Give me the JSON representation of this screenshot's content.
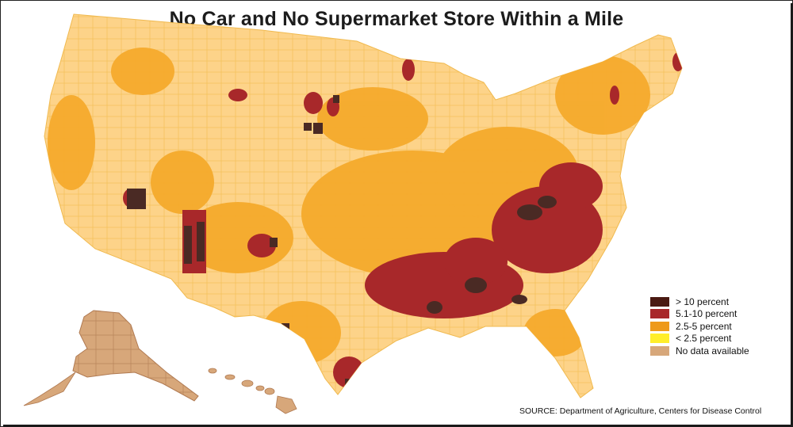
{
  "title": "No Car and No Supermarket Store Within a Mile",
  "source": "SOURCE: Department of Agriculture, Centers for Disease Control",
  "legend": {
    "placement": "bottom-right",
    "items": [
      {
        "label": "> 10 percent",
        "color": "#4a1a12"
      },
      {
        "label": "5.1-10 percent",
        "color": "#a8282a"
      },
      {
        "label": "2.5-5 percent",
        "color": "#ee9a1a"
      },
      {
        "label": "< 2.5 percent",
        "color": "#ffee2a"
      },
      {
        "label": "No data available",
        "color": "#d7a77a"
      }
    ]
  },
  "colors": {
    "low_percent_fill": "#fdd389",
    "county_border": "#f6c65e",
    "no_data_region_fill": "#d7a77a"
  },
  "map": {
    "regions": [
      "contiguous-us",
      "alaska",
      "hawaii"
    ],
    "no_data_regions": [
      "alaska",
      "hawaii"
    ],
    "highest_concentration_regions": [
      "southeast",
      "appalachia",
      "four-corners",
      "northern-plains"
    ]
  }
}
